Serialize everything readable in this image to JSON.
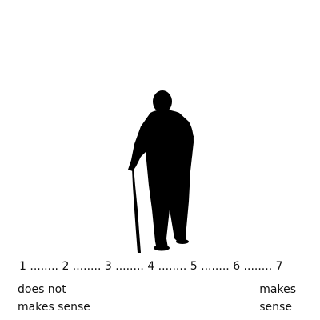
{
  "scale": {
    "points": [
      "1",
      "2",
      "3",
      "4",
      "5",
      "6",
      "7"
    ],
    "separator": " ........ "
  },
  "anchors": {
    "left": {
      "line1": "does not",
      "line2": "makes sense"
    },
    "right": {
      "line1": "makes",
      "line2": "sense"
    }
  },
  "image": {
    "subject_icon": "elderly-person-with-cane-silhouette",
    "fill_color": "#000000",
    "background_color": "#ffffff"
  }
}
